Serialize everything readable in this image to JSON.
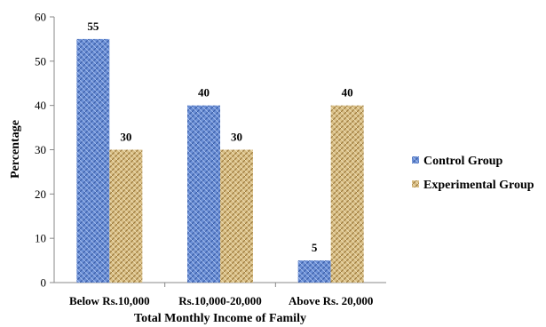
{
  "chart_data": {
    "type": "bar",
    "categories": [
      "Below Rs.10,000",
      "Rs.10,000-20,000",
      "Above Rs. 20,000"
    ],
    "series": [
      {
        "name": "Control Group",
        "values": [
          55,
          40,
          5
        ],
        "color": "#5b7fc7"
      },
      {
        "name": "Experimental Group",
        "values": [
          30,
          30,
          40
        ],
        "color": "#c8a86a"
      }
    ],
    "xlabel": "Total Monthly Income of Family",
    "ylabel": "Percentage",
    "ylim": [
      0,
      60
    ],
    "yticks": [
      0,
      10,
      20,
      30,
      40,
      50,
      60
    ],
    "grid": false,
    "legend_position": "right",
    "data_labels": true
  }
}
